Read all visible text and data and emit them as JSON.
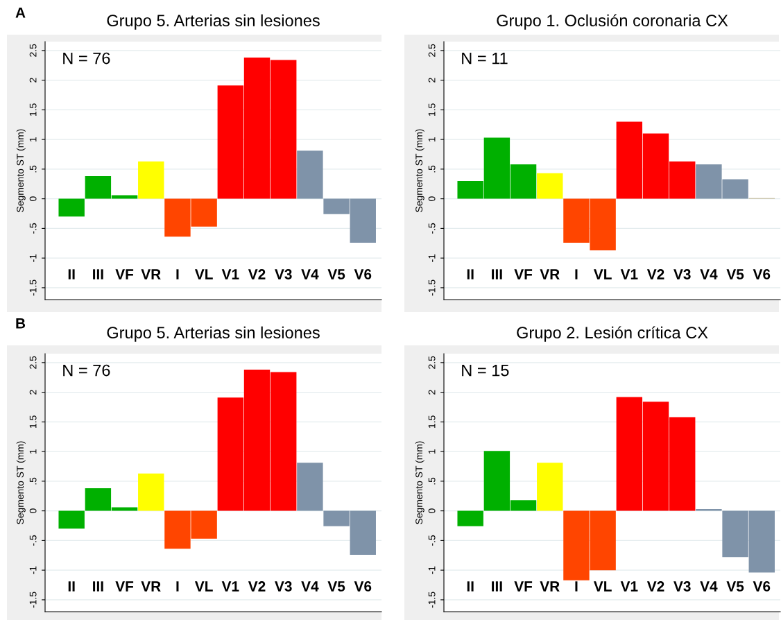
{
  "chart_data": [
    {
      "type": "bar",
      "title": "Grupo 5. Arterias sin lesiones",
      "ylabel": "Segmento ST (mm)",
      "annotations": [
        "A",
        "N = 76"
      ],
      "categories": [
        "II",
        "III",
        "VF",
        "VR",
        "I",
        "VL",
        "V1",
        "V2",
        "V3",
        "V4",
        "V5",
        "V6"
      ],
      "values": [
        -0.3,
        0.38,
        0.06,
        0.63,
        -0.64,
        -0.47,
        1.91,
        2.38,
        2.34,
        0.81,
        -0.26,
        -0.74
      ],
      "colors": [
        "#00b000",
        "#00b000",
        "#00b000",
        "#ffff00",
        "#ff4500",
        "#ff4500",
        "#ff0000",
        "#ff0000",
        "#ff0000",
        "#7f93a9",
        "#7f93a9",
        "#7f93a9"
      ],
      "ylim": [
        -1.7,
        2.65
      ],
      "yticks": [
        {
          "value": -1.5,
          "label": "-1.5"
        },
        {
          "value": -1,
          "label": "-1"
        },
        {
          "value": -0.5,
          "label": "-.5"
        },
        0,
        {
          "value": 0.5,
          "label": ".5"
        },
        1,
        1.5,
        2,
        2.5
      ],
      "grid": "y"
    },
    {
      "type": "bar",
      "title": "Grupo 1. Oclusión coronaria CX",
      "ylabel": "Segmento ST (mm)",
      "annotations": [
        "N = 11"
      ],
      "categories": [
        "II",
        "III",
        "VF",
        "VR",
        "I",
        "VL",
        "V1",
        "V2",
        "V3",
        "V4",
        "V5",
        "V6"
      ],
      "values": [
        0.3,
        1.03,
        0.58,
        0.43,
        -0.74,
        -0.87,
        1.3,
        1.1,
        0.63,
        0.58,
        0.33,
        0.01
      ],
      "colors": [
        "#00b000",
        "#00b000",
        "#00b000",
        "#ffff00",
        "#ff4500",
        "#ff4500",
        "#ff0000",
        "#ff0000",
        "#ff0000",
        "#7f93a9",
        "#7f93a9",
        "#b0a070"
      ],
      "ylim": [
        -1.7,
        2.65
      ],
      "yticks": [
        {
          "value": -1.5,
          "label": "-1.5"
        },
        {
          "value": -1,
          "label": "-1"
        },
        {
          "value": -0.5,
          "label": "-.5"
        },
        0,
        {
          "value": 0.5,
          "label": ".5"
        },
        1,
        1.5,
        2,
        2.5
      ],
      "grid": "y"
    },
    {
      "type": "bar",
      "title": "Grupo 5. Arterias sin lesiones",
      "ylabel": "Segmento ST (mm)",
      "annotations": [
        "B",
        "N = 76"
      ],
      "categories": [
        "II",
        "III",
        "VF",
        "VR",
        "I",
        "VL",
        "V1",
        "V2",
        "V3",
        "V4",
        "V5",
        "V6"
      ],
      "values": [
        -0.3,
        0.38,
        0.06,
        0.63,
        -0.64,
        -0.47,
        1.91,
        2.38,
        2.34,
        0.81,
        -0.26,
        -0.74
      ],
      "colors": [
        "#00b000",
        "#00b000",
        "#00b000",
        "#ffff00",
        "#ff4500",
        "#ff4500",
        "#ff0000",
        "#ff0000",
        "#ff0000",
        "#7f93a9",
        "#7f93a9",
        "#7f93a9"
      ],
      "ylim": [
        -1.7,
        2.65
      ],
      "yticks": [
        {
          "value": -1.5,
          "label": "-1.5"
        },
        {
          "value": -1,
          "label": "-1"
        },
        {
          "value": -0.5,
          "label": "-.5"
        },
        0,
        {
          "value": 0.5,
          "label": ".5"
        },
        1,
        1.5,
        2,
        2.5
      ],
      "grid": "y"
    },
    {
      "type": "bar",
      "title": "Grupo 2. Lesión crítica CX",
      "ylabel": "Segmento ST (mm)",
      "annotations": [
        "N = 15"
      ],
      "categories": [
        "II",
        "III",
        "VF",
        "VR",
        "I",
        "VL",
        "V1",
        "V2",
        "V3",
        "V4",
        "V5",
        "V6"
      ],
      "values": [
        -0.26,
        1.01,
        0.18,
        0.81,
        -1.17,
        -1.0,
        1.92,
        1.84,
        1.58,
        0.03,
        -0.78,
        -1.04
      ],
      "colors": [
        "#00b000",
        "#00b000",
        "#00b000",
        "#ffff00",
        "#ff4500",
        "#ff4500",
        "#ff0000",
        "#ff0000",
        "#ff0000",
        "#7f93a9",
        "#7f93a9",
        "#7f93a9"
      ],
      "ylim": [
        -1.7,
        2.65
      ],
      "yticks": [
        {
          "value": -1.5,
          "label": "-1.5"
        },
        {
          "value": -1,
          "label": "-1"
        },
        {
          "value": -0.5,
          "label": "-.5"
        },
        0,
        {
          "value": 0.5,
          "label": ".5"
        },
        1,
        1.5,
        2,
        2.5
      ],
      "grid": "y"
    }
  ]
}
